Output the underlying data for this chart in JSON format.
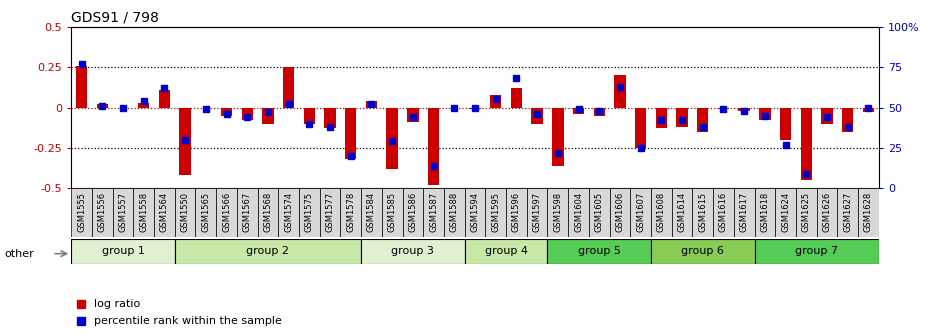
{
  "title": "GDS91 / 798",
  "samples": [
    "GSM1555",
    "GSM1556",
    "GSM1557",
    "GSM1558",
    "GSM1564",
    "GSM1550",
    "GSM1565",
    "GSM1566",
    "GSM1567",
    "GSM1568",
    "GSM1574",
    "GSM1575",
    "GSM1577",
    "GSM1578",
    "GSM1584",
    "GSM1585",
    "GSM1586",
    "GSM1587",
    "GSM1588",
    "GSM1594",
    "GSM1595",
    "GSM1596",
    "GSM1597",
    "GSM1598",
    "GSM1604",
    "GSM1605",
    "GSM1606",
    "GSM1607",
    "GSM1608",
    "GSM1614",
    "GSM1615",
    "GSM1616",
    "GSM1617",
    "GSM1618",
    "GSM1624",
    "GSM1625",
    "GSM1626",
    "GSM1627",
    "GSM1628"
  ],
  "log_ratio": [
    0.26,
    0.02,
    0.0,
    0.03,
    0.11,
    -0.42,
    0.0,
    -0.05,
    -0.08,
    -0.1,
    0.25,
    -0.1,
    -0.13,
    -0.32,
    0.04,
    -0.38,
    -0.09,
    -0.48,
    0.0,
    -0.01,
    0.08,
    0.12,
    -0.1,
    -0.36,
    -0.04,
    -0.05,
    0.2,
    -0.25,
    -0.13,
    -0.12,
    -0.15,
    -0.01,
    -0.02,
    -0.08,
    -0.2,
    -0.45,
    -0.1,
    -0.15,
    -0.03
  ],
  "percentile": [
    77,
    51,
    50,
    54,
    62,
    30,
    49,
    46,
    44,
    47,
    52,
    40,
    38,
    20,
    52,
    29,
    44,
    14,
    50,
    50,
    55,
    68,
    46,
    22,
    49,
    48,
    63,
    25,
    42,
    42,
    38,
    49,
    48,
    45,
    27,
    9,
    44,
    38,
    50
  ],
  "bar_color": "#cc0000",
  "dot_color": "#0000cc",
  "ylim": [
    -0.5,
    0.5
  ],
  "y2lim": [
    0,
    100
  ],
  "group_data": [
    {
      "name": "group 1",
      "start": 0,
      "end": 4,
      "color": "#e0f0d0"
    },
    {
      "name": "group 2",
      "start": 5,
      "end": 13,
      "color": "#c8e8a8"
    },
    {
      "name": "group 3",
      "start": 14,
      "end": 18,
      "color": "#e0f0d0"
    },
    {
      "name": "group 4",
      "start": 19,
      "end": 22,
      "color": "#c8e8a8"
    },
    {
      "name": "group 5",
      "start": 23,
      "end": 27,
      "color": "#55cc55"
    },
    {
      "name": "group 6",
      "start": 28,
      "end": 32,
      "color": "#88cc55"
    },
    {
      "name": "group 7",
      "start": 33,
      "end": 38,
      "color": "#55cc55"
    }
  ]
}
